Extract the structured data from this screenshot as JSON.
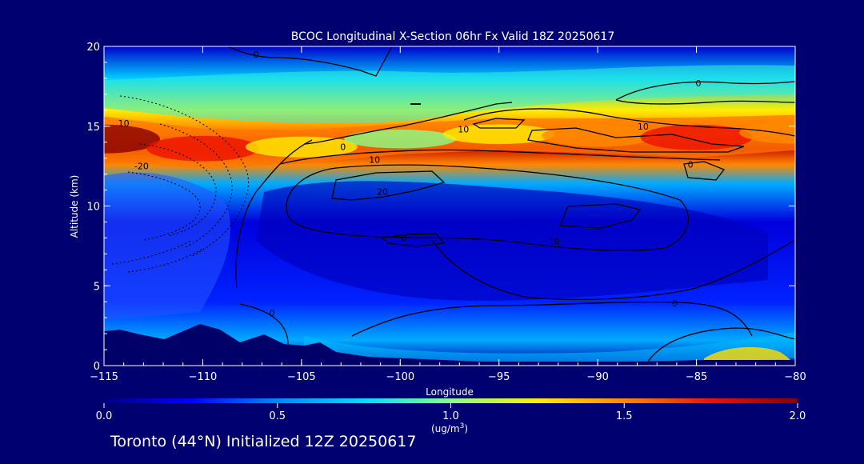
{
  "chart_data": {
    "type": "heatmap",
    "title": "BCOC Longitudinal X-Section 06hr  Fx Valid 18Z 20250617",
    "xlabel": "Longitude",
    "ylabel": "Altitude (km)",
    "xlim": [
      -115,
      -80
    ],
    "ylim": [
      0,
      20
    ],
    "x_ticks": [
      -115,
      -110,
      -105,
      -100,
      -95,
      -90,
      -85,
      -80
    ],
    "x_tick_labels": [
      "−115",
      "−110",
      "−105",
      "−100",
      "−95",
      "−90",
      "−85",
      "−80"
    ],
    "y_ticks": [
      0,
      5,
      10,
      15,
      20
    ],
    "y_tick_labels": [
      "0",
      "5",
      "10",
      "15",
      "20"
    ],
    "colorbar": {
      "min": 0.0,
      "max": 2.0,
      "ticks": [
        0.0,
        0.5,
        1.0,
        1.5,
        2.0
      ],
      "tick_labels": [
        "0.0",
        "0.5",
        "1.0",
        "1.5",
        "2.0"
      ],
      "unit_label": "(ug/m",
      "unit_exponent": "3",
      "unit_close": ")",
      "colors": [
        "#000080",
        "#0000ff",
        "#0088ff",
        "#00ddff",
        "#88ff88",
        "#ffee00",
        "#ff8800",
        "#ee1100",
        "#880000"
      ]
    },
    "heat_bands": [
      {
        "lon": -115,
        "alt_center": 14.2,
        "value": 2.0
      },
      {
        "lon": -110,
        "alt_center": 13.6,
        "value": 1.7
      },
      {
        "lon": -105,
        "alt_center": 13.7,
        "value": 1.3
      },
      {
        "lon": -100,
        "alt_center": 14.2,
        "value": 1.1
      },
      {
        "lon": -95,
        "alt_center": 14.5,
        "value": 1.2
      },
      {
        "lon": -90,
        "alt_center": 14.4,
        "value": 1.4
      },
      {
        "lon": -85,
        "alt_center": 14.3,
        "value": 1.7
      },
      {
        "lon": -80,
        "alt_center": 14.6,
        "value": 1.4
      }
    ],
    "contour_labels": [
      {
        "text": "0",
        "lon": -107.3,
        "alt": 19.5
      },
      {
        "text": "0",
        "lon": -84.9,
        "alt": 17.7
      },
      {
        "text": "10",
        "lon": -114.0,
        "alt": 15.2
      },
      {
        "text": "10",
        "lon": -96.8,
        "alt": 14.8
      },
      {
        "text": "10",
        "lon": -87.7,
        "alt": 15.0
      },
      {
        "text": "0",
        "lon": -102.9,
        "alt": 13.7
      },
      {
        "text": "10",
        "lon": -101.3,
        "alt": 12.9
      },
      {
        "text": "-20",
        "lon": -113.1,
        "alt": 12.5
      },
      {
        "text": "0",
        "lon": -85.3,
        "alt": 12.6
      },
      {
        "text": "20",
        "lon": -100.9,
        "alt": 10.9
      },
      {
        "text": "0",
        "lon": -99.8,
        "alt": 8.0
      },
      {
        "text": "10",
        "lon": -92.2,
        "alt": 7.8
      },
      {
        "text": "0",
        "lon": -106.5,
        "alt": 3.3
      },
      {
        "text": "0",
        "lon": -86.1,
        "alt": 3.9
      }
    ]
  },
  "footer": {
    "location": "Toronto (44°N) Initialized 12Z 20250617"
  }
}
